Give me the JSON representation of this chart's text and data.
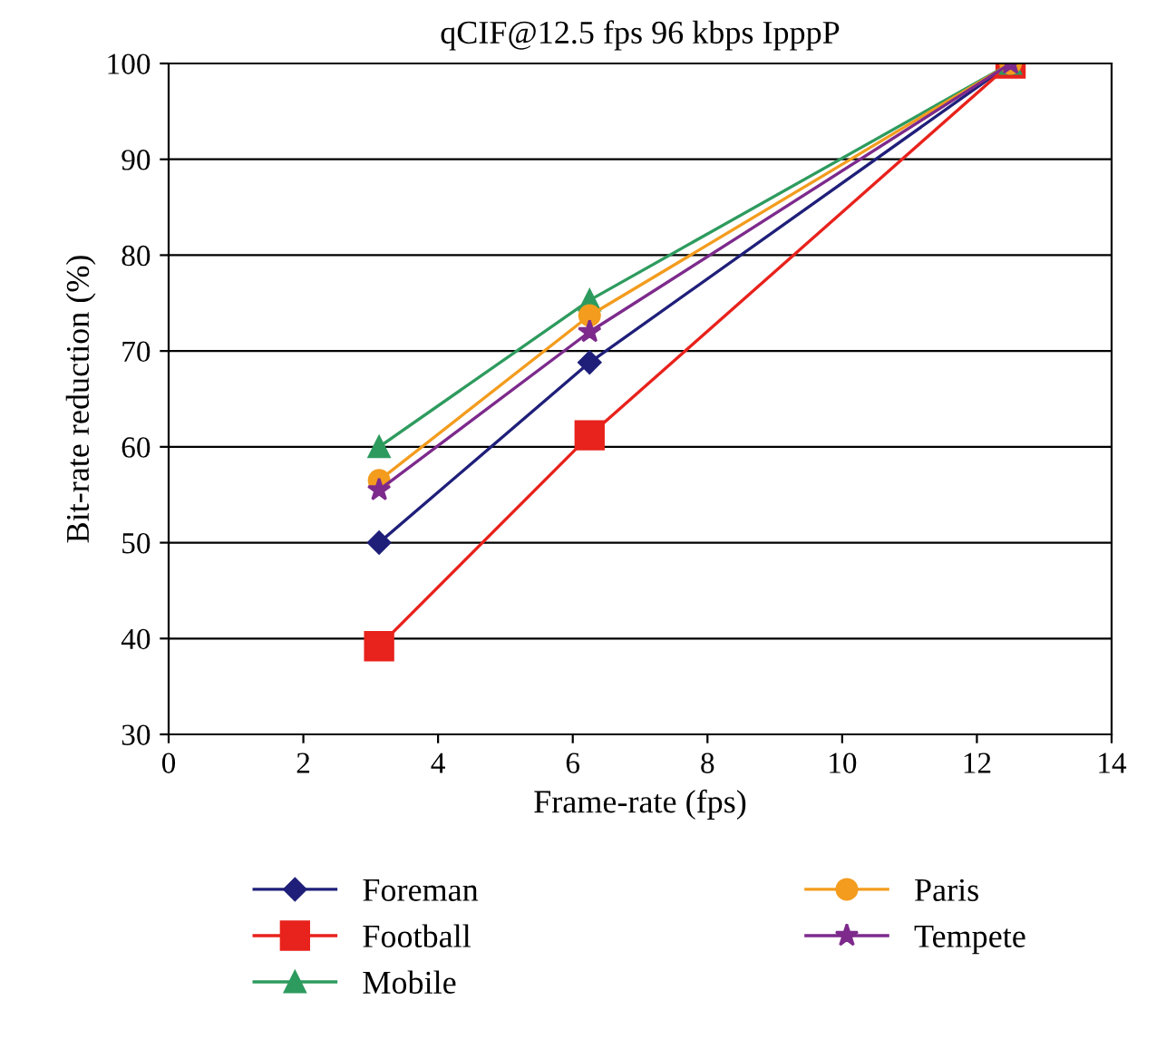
{
  "chart_data": {
    "type": "line",
    "title": "qCIF@12.5 fps 96 kbps IpppP",
    "xlabel": "Frame-rate (fps)",
    "ylabel": "Bit-rate reduction (%)",
    "x": [
      3.125,
      6.25,
      12.5
    ],
    "series": [
      {
        "name": "Foreman",
        "color": "#1f1f7a",
        "marker": "diamond",
        "values": [
          50,
          68.8,
          100
        ]
      },
      {
        "name": "Football",
        "color": "#e8221c",
        "marker": "square",
        "values": [
          39.2,
          61.2,
          100
        ]
      },
      {
        "name": "Mobile",
        "color": "#2e9b5e",
        "marker": "triangle",
        "values": [
          60,
          75.3,
          100
        ]
      },
      {
        "name": "Paris",
        "color": "#f39c1e",
        "marker": "circle",
        "values": [
          56.5,
          73.7,
          100
        ]
      },
      {
        "name": "Tempete",
        "color": "#7d2a8c",
        "marker": "star",
        "values": [
          55.5,
          72,
          100
        ]
      }
    ],
    "xlim": [
      0,
      14
    ],
    "xticks": [
      0,
      2,
      4,
      6,
      8,
      10,
      12,
      14
    ],
    "ylim": [
      30,
      100
    ],
    "yticks": [
      30,
      40,
      50,
      60,
      70,
      80,
      90,
      100
    ],
    "grid": "y",
    "legend": "bottom",
    "line_style": "solid"
  }
}
